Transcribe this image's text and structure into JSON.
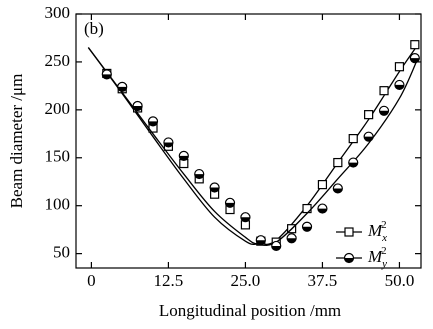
{
  "chart_data": {
    "type": "scatter",
    "annotation": "(b)",
    "x_label": "Longitudinal position /mm",
    "y_label": "Beam diameter /μm",
    "xlim": [
      -2.5,
      53.5
    ],
    "ylim": [
      35,
      300
    ],
    "xticks": [
      0,
      12.5,
      {
        "value": 25,
        "label": "25.0"
      },
      37.5,
      {
        "value": 50,
        "label": "50.0"
      }
    ],
    "yticks": [
      50,
      100,
      150,
      200,
      250,
      300
    ],
    "x": [
      2.5,
      5,
      7.5,
      10,
      12.5,
      15,
      17.5,
      20,
      22.5,
      25,
      27.5,
      30,
      32.5,
      35,
      37.5,
      40,
      42.5,
      45,
      47.5,
      50,
      52.5
    ],
    "fit_x": [
      -0.5,
      5,
      10,
      15,
      20,
      25,
      27,
      30,
      35,
      40,
      45,
      50,
      53
    ],
    "legend": "lower right",
    "series": [
      {
        "name": "M",
        "sub": "x",
        "sup": "2",
        "marker": "square",
        "color": "#000",
        "values": [
          238,
          222,
          202,
          181,
          162,
          144,
          128,
          112,
          96,
          80,
          63,
          62,
          76,
          97,
          122,
          145,
          170,
          195,
          220,
          245,
          268
        ],
        "fit": [
          265,
          217,
          172,
          128,
          88,
          63,
          60,
          64,
          100,
          145,
          190,
          240,
          268
        ]
      },
      {
        "name": "M",
        "sub": "y",
        "sup": "2",
        "marker": "half-circle",
        "color": "#000",
        "values": [
          237,
          224,
          204,
          188,
          166,
          152,
          133,
          119,
          103,
          88,
          64,
          58,
          66,
          78,
          97,
          118,
          145,
          172,
          199,
          226,
          254
        ],
        "fit": [
          265,
          218,
          175,
          133,
          94,
          67,
          60,
          62,
          92,
          128,
          165,
          212,
          254
        ]
      }
    ]
  }
}
